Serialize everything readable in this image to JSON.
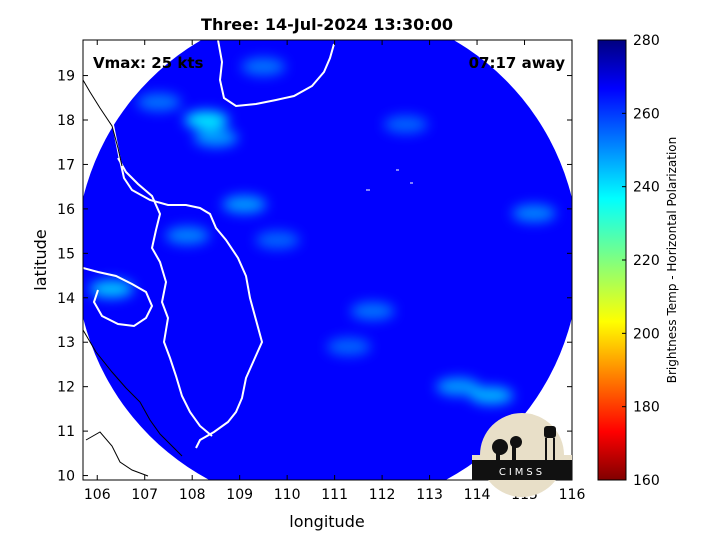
{
  "chart_data": {
    "type": "heatmap",
    "title": "Three: 14-Jul-2024 13:30:00",
    "xlabel": "longitude",
    "ylabel": "latitude",
    "xlim": [
      105.7,
      116.0
    ],
    "ylim": [
      9.9,
      19.8
    ],
    "x_ticks": [
      106,
      107,
      108,
      109,
      110,
      111,
      112,
      113,
      114,
      115,
      116
    ],
    "y_ticks": [
      10,
      11,
      12,
      13,
      14,
      15,
      16,
      17,
      18,
      19
    ],
    "swath_center": [
      110.85,
      14.9
    ],
    "swath_radius_deg": 5.3,
    "background_value": 265,
    "features": [
      {
        "lon": 108.3,
        "lat": 18.0,
        "value": 235
      },
      {
        "lon": 108.5,
        "lat": 17.6,
        "value": 245
      },
      {
        "lon": 107.9,
        "lat": 15.4,
        "value": 248
      },
      {
        "lon": 109.1,
        "lat": 16.1,
        "value": 245
      },
      {
        "lon": 106.3,
        "lat": 14.2,
        "value": 240
      },
      {
        "lon": 113.6,
        "lat": 12.0,
        "value": 245
      },
      {
        "lon": 114.3,
        "lat": 11.8,
        "value": 242
      },
      {
        "lon": 109.8,
        "lat": 15.3,
        "value": 252
      },
      {
        "lon": 111.8,
        "lat": 13.7,
        "value": 250
      },
      {
        "lon": 111.3,
        "lat": 12.9,
        "value": 252
      },
      {
        "lon": 112.5,
        "lat": 17.9,
        "value": 252
      },
      {
        "lon": 109.5,
        "lat": 19.2,
        "value": 250
      },
      {
        "lon": 107.3,
        "lat": 18.4,
        "value": 250
      },
      {
        "lon": 115.2,
        "lat": 15.9,
        "value": 248
      }
    ],
    "colorbar": {
      "label": "Brightness Temp - Horizontal Polarization",
      "range": [
        160,
        280
      ],
      "ticks": [
        160,
        180,
        200,
        220,
        240,
        260,
        280
      ],
      "colormap": "jet"
    },
    "annotations": {
      "vmax": "Vmax: 25 kts",
      "time_away": "07:17 away"
    }
  },
  "logo_text": "CIMSS",
  "colors": {
    "frame": "#000000",
    "coastline": "#ffffff",
    "land_outline": "#000000"
  }
}
